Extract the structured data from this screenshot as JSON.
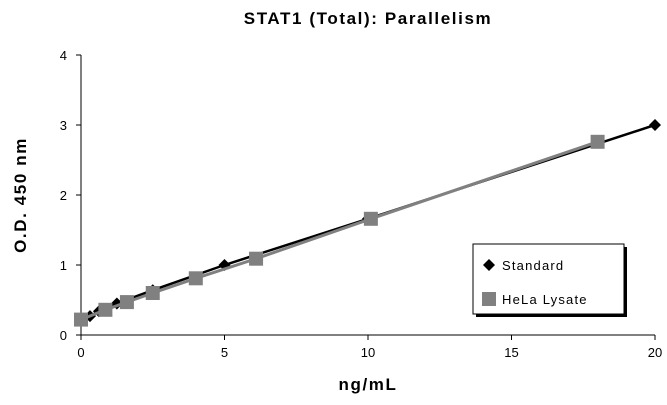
{
  "chart_data": {
    "type": "line",
    "title": "STAT1 (Total): Parallelism",
    "xlabel": "ng/mL",
    "ylabel": "O.D. 450 nm",
    "xlim": [
      0,
      20
    ],
    "ylim": [
      0,
      4
    ],
    "xticks": [
      "0",
      "5",
      "10",
      "15",
      "20"
    ],
    "yticks": [
      "0",
      "1",
      "2",
      "3",
      "4"
    ],
    "grid": false,
    "legend_position": "bottom-right",
    "series": [
      {
        "name": "Standard",
        "marker": "diamond",
        "color": "#000000",
        "x": [
          0,
          0.3125,
          0.625,
          1.25,
          2.5,
          5,
          10,
          20
        ],
        "y": [
          0.22,
          0.27,
          0.34,
          0.45,
          0.64,
          1.0,
          1.66,
          3.0
        ]
      },
      {
        "name": "HeLa Lysate",
        "marker": "square",
        "color": "#808080",
        "x": [
          0,
          0.85,
          1.6,
          2.5,
          4.0,
          6.1,
          10.1,
          18.0
        ],
        "y": [
          0.22,
          0.36,
          0.47,
          0.6,
          0.81,
          1.09,
          1.66,
          2.76
        ]
      }
    ]
  }
}
